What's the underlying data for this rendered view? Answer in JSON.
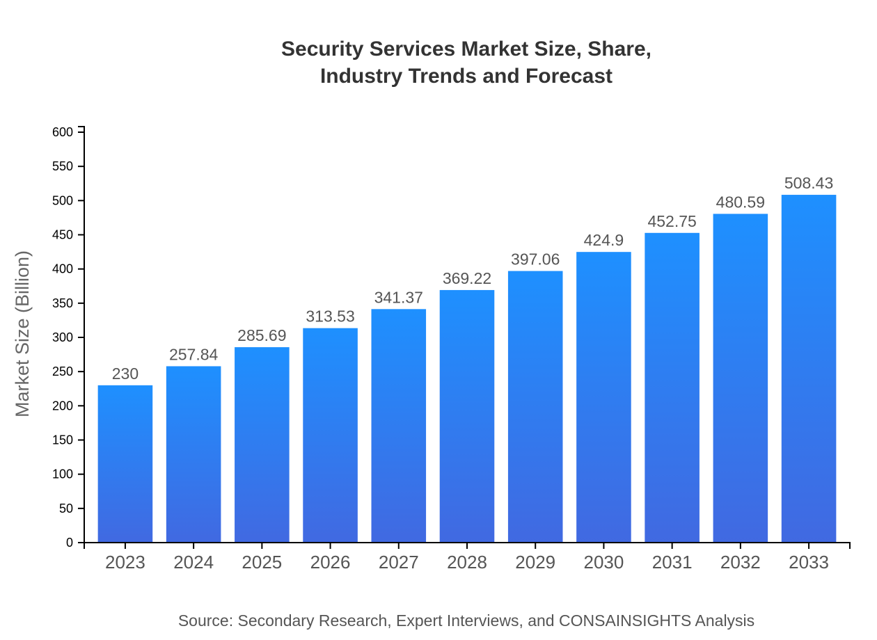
{
  "chart_data": {
    "type": "bar",
    "title_lines": [
      "Security Services Market Size, Share,",
      "Industry Trends and Forecast"
    ],
    "xlabel": "",
    "ylabel": "Market Size (Billion)",
    "categories": [
      "2023",
      "2024",
      "2025",
      "2026",
      "2027",
      "2028",
      "2029",
      "2030",
      "2031",
      "2032",
      "2033"
    ],
    "values": [
      230,
      257.84,
      285.69,
      313.53,
      341.37,
      369.22,
      397.06,
      424.9,
      452.75,
      480.59,
      508.43
    ],
    "data_labels": [
      "230",
      "257.84",
      "285.69",
      "313.53",
      "341.37",
      "369.22",
      "397.06",
      "424.9",
      "452.75",
      "480.59",
      "508.43"
    ],
    "ylim": [
      0,
      600
    ],
    "yticks": [
      0,
      50,
      100,
      150,
      200,
      250,
      300,
      350,
      400,
      450,
      500,
      550,
      600
    ],
    "grid": false,
    "bar_gradient": {
      "top": "#1E90FF",
      "bottom": "#4169E1"
    },
    "source": "Source: Secondary Research, Expert Interviews, and CONSAINSIGHTS Analysis"
  }
}
